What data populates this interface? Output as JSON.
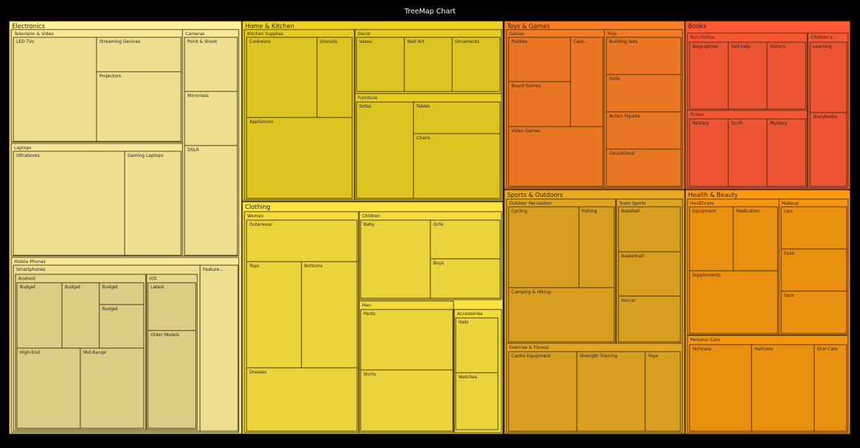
{
  "chart_data": {
    "type": "treemap",
    "title": "TreeMap Chart",
    "colors": {
      "Electronics": "#fff09a",
      "Home & Kitchen": "#eed322",
      "Clothing": "#fde33f",
      "Toys & Games": "#fb7f26",
      "Books": "#ff5a35",
      "Sports & Outdoors": "#e8aa22",
      "Health & Beauty": "#fd9a12"
    },
    "categories": [
      {
        "name": "Electronics",
        "children": [
          {
            "name": "Television & Video",
            "children": [
              {
                "name": "LED TVs"
              },
              {
                "name": "Streaming Devices"
              },
              {
                "name": "Projectors"
              }
            ]
          },
          {
            "name": "Cameras",
            "children": [
              {
                "name": "Point & Shoot"
              },
              {
                "name": "Mirrorless"
              },
              {
                "name": "DSLR"
              }
            ]
          },
          {
            "name": "Laptops",
            "children": [
              {
                "name": "Ultrabooks"
              },
              {
                "name": "Gaming Laptops"
              }
            ]
          },
          {
            "name": "Mobile Phones",
            "children": [
              {
                "name": "Smartphones",
                "children": [
                  {
                    "name": "Android",
                    "children": [
                      {
                        "name": "Budget"
                      },
                      {
                        "name": "Budget"
                      },
                      {
                        "name": "Budget"
                      },
                      {
                        "name": "Budget"
                      },
                      {
                        "name": "High-End"
                      },
                      {
                        "name": "Mid-Range"
                      }
                    ]
                  },
                  {
                    "name": "iOS",
                    "children": [
                      {
                        "name": "Latest"
                      },
                      {
                        "name": "Older Models"
                      }
                    ]
                  }
                ]
              },
              {
                "name": "Feature..."
              }
            ]
          }
        ]
      },
      {
        "name": "Home & Kitchen",
        "children": [
          {
            "name": "Kitchen Supplies",
            "children": [
              {
                "name": "Cookware"
              },
              {
                "name": "Utensils"
              },
              {
                "name": "Appliances"
              }
            ]
          },
          {
            "name": "Decor",
            "children": [
              {
                "name": "Vases"
              },
              {
                "name": "Wall Art"
              },
              {
                "name": "Ornaments"
              }
            ]
          },
          {
            "name": "Furniture",
            "children": [
              {
                "name": "Sofas"
              },
              {
                "name": "Tables"
              },
              {
                "name": "Chairs"
              }
            ]
          }
        ]
      },
      {
        "name": "Clothing",
        "children": [
          {
            "name": "Women",
            "children": [
              {
                "name": "Outerwear"
              },
              {
                "name": "Tops"
              },
              {
                "name": "Bottoms"
              },
              {
                "name": "Dresses"
              }
            ]
          },
          {
            "name": "Children",
            "children": [
              {
                "name": "Baby"
              },
              {
                "name": "Girls"
              },
              {
                "name": "Boys"
              }
            ]
          },
          {
            "name": "Men",
            "children": [
              {
                "name": "Pants"
              },
              {
                "name": "Shirts"
              }
            ]
          },
          {
            "name": "Accessories",
            "children": [
              {
                "name": "Hats"
              },
              {
                "name": "Watches"
              }
            ]
          }
        ]
      },
      {
        "name": "Toys & Games",
        "children": [
          {
            "name": "Games",
            "children": [
              {
                "name": "Puzzles"
              },
              {
                "name": "Card..."
              },
              {
                "name": "Board Games"
              },
              {
                "name": "Video Games"
              }
            ]
          },
          {
            "name": "Toys",
            "children": [
              {
                "name": "Building Sets"
              },
              {
                "name": "Dolls"
              },
              {
                "name": "Action Figures"
              },
              {
                "name": "Educational"
              }
            ]
          }
        ]
      },
      {
        "name": "Books",
        "children": [
          {
            "name": "Non-Fiction",
            "children": [
              {
                "name": "Biographies"
              },
              {
                "name": "Self-help"
              },
              {
                "name": "History"
              }
            ]
          },
          {
            "name": "Children's...",
            "children": [
              {
                "name": "Learning"
              },
              {
                "name": "Storybooks"
              }
            ]
          },
          {
            "name": "Fiction",
            "children": [
              {
                "name": "Fantasy"
              },
              {
                "name": "Sci-Fi"
              },
              {
                "name": "Mystery"
              }
            ]
          }
        ]
      },
      {
        "name": "Sports & Outdoors",
        "children": [
          {
            "name": "Outdoor Recreation",
            "children": [
              {
                "name": "Cycling"
              },
              {
                "name": "Fishing"
              },
              {
                "name": "Camping & Hiking"
              }
            ]
          },
          {
            "name": "Team Sports",
            "children": [
              {
                "name": "Baseball"
              },
              {
                "name": "Basketball"
              },
              {
                "name": "Soccer"
              }
            ]
          },
          {
            "name": "Exercise & Fitness",
            "children": [
              {
                "name": "Cardio Equipment"
              },
              {
                "name": "Strength Training"
              },
              {
                "name": "Yoga"
              }
            ]
          }
        ]
      },
      {
        "name": "Health & Beauty",
        "children": [
          {
            "name": "Healthcare",
            "children": [
              {
                "name": "Equipment"
              },
              {
                "name": "Medication"
              },
              {
                "name": "Supplements"
              }
            ]
          },
          {
            "name": "Makeup",
            "children": [
              {
                "name": "Lips"
              },
              {
                "name": "Eyes"
              },
              {
                "name": "Face"
              }
            ]
          },
          {
            "name": "Personal Care",
            "children": [
              {
                "name": "Skincare"
              },
              {
                "name": "Haircare"
              },
              {
                "name": "Oral Care"
              }
            ]
          }
        ]
      }
    ]
  }
}
